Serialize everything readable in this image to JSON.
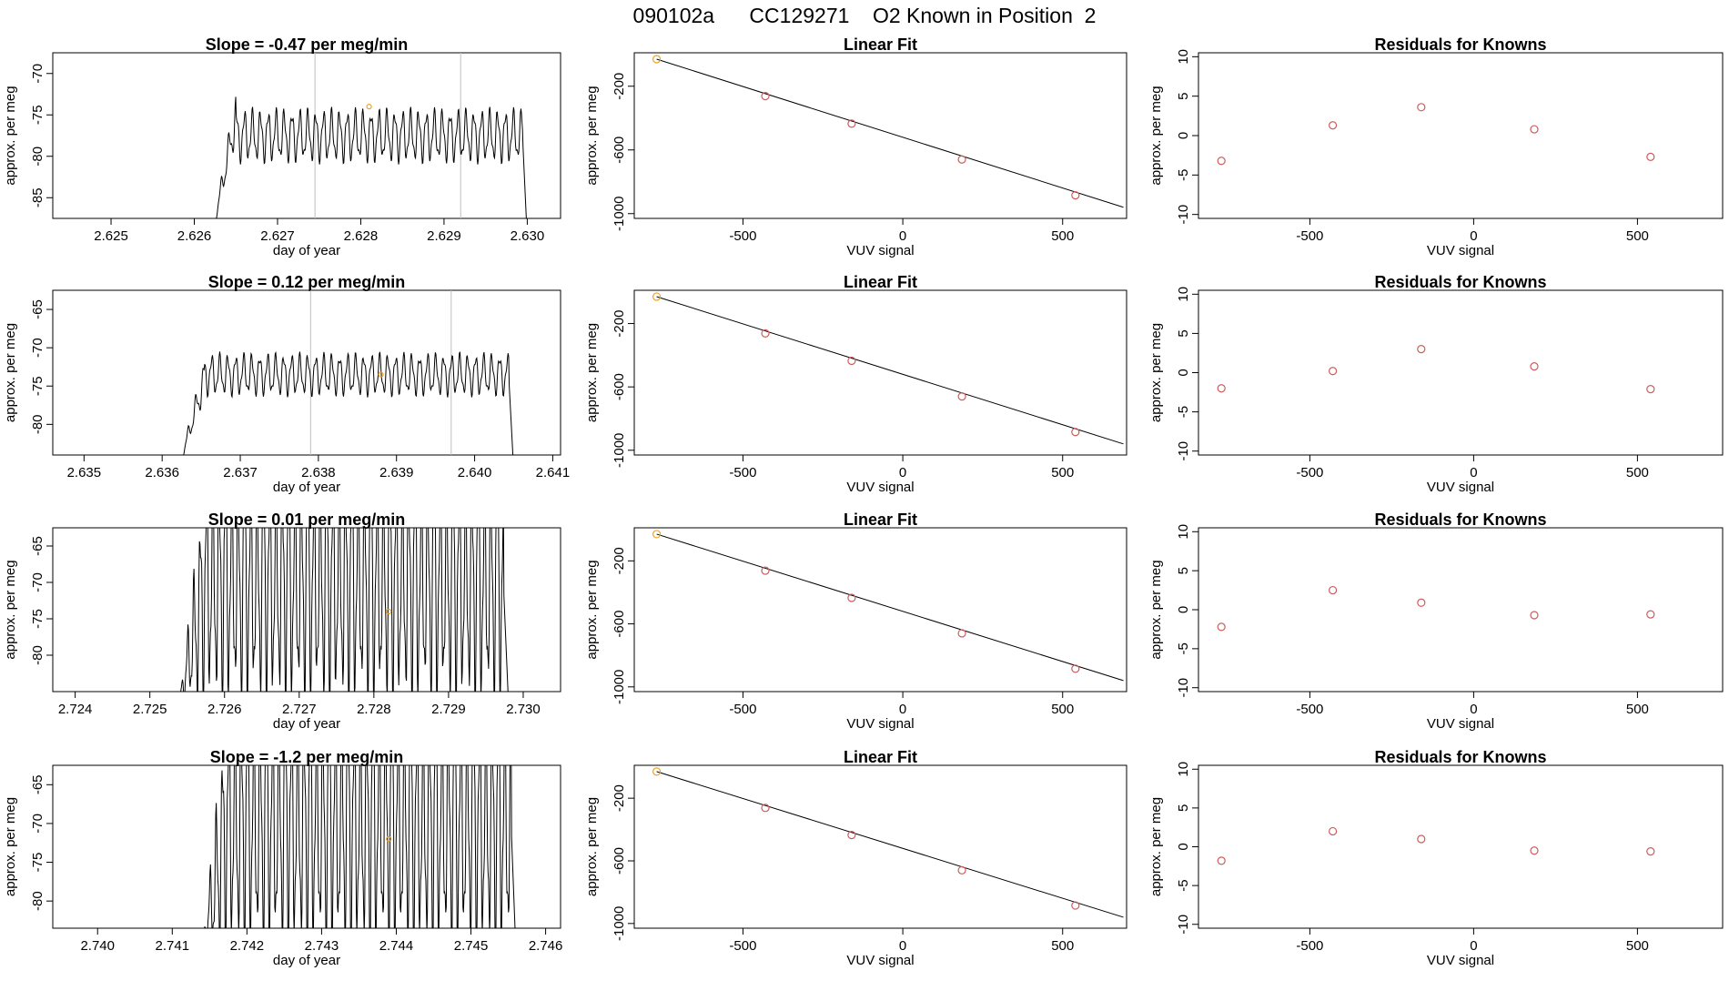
{
  "page_title": "090102a      CC129271    O2 Known in Position  2",
  "colors": {
    "axis": "#000000",
    "line": "#000000",
    "gridline": "#bfbfbf",
    "known_point": "#cd5c5c",
    "highlight_point": "#f0a020"
  },
  "chart_data": [
    {
      "type": "line",
      "row": 1,
      "panel": "timeseries",
      "title": "Slope =  -0.47  per meg/min",
      "xlabel": "day of year",
      "ylabel": "approx. per meg",
      "xlim": [
        2.6243,
        2.6304
      ],
      "ylim": [
        -87.5,
        -67.5
      ],
      "xticks": [
        2.625,
        2.626,
        2.627,
        2.628,
        2.629,
        2.63
      ],
      "xtick_labels": [
        "2.625",
        "2.626",
        "2.627",
        "2.628",
        "2.629",
        "2.630"
      ],
      "yticks": [
        -85,
        -80,
        -75,
        -70
      ],
      "ytick_labels": [
        "-85",
        "-80",
        "-75",
        "-70"
      ],
      "vlines": [
        2.62745,
        2.6292
      ],
      "series": [
        {
          "name": "per meg",
          "x_start": 2.6262,
          "x_end": 2.63,
          "level": -77.5,
          "amplitude": 3.5,
          "cycles": 40,
          "ramp_from": -90,
          "ramp_to": -75,
          "drop_to": -90
        }
      ],
      "highlight_point": {
        "x": 2.6281,
        "y": -74
      }
    },
    {
      "type": "scatter",
      "row": 1,
      "panel": "linear_fit",
      "title": "Linear Fit",
      "xlabel": "VUV signal",
      "ylabel": "approx. per meg",
      "xlim": [
        -840,
        700
      ],
      "ylim": [
        -1030,
        10
      ],
      "xticks": [
        -500,
        0,
        500
      ],
      "xtick_labels": [
        "-500",
        "0",
        "500"
      ],
      "yticks": [
        -1000,
        -600,
        -200
      ],
      "ytick_labels": [
        "-1000",
        "-600",
        "-200"
      ],
      "points": [
        {
          "x": -770,
          "y": -30
        },
        {
          "x": -430,
          "y": -262
        },
        {
          "x": -160,
          "y": -435
        },
        {
          "x": 185,
          "y": -660
        },
        {
          "x": 540,
          "y": -885
        }
      ],
      "fit_line": {
        "x": [
          -770,
          690
        ],
        "y": [
          -30,
          -960
        ]
      }
    },
    {
      "type": "scatter",
      "row": 1,
      "panel": "residuals",
      "title": "Residuals for Knowns",
      "xlabel": "VUV signal",
      "ylabel": "approx. per meg",
      "xlim": [
        -840,
        760
      ],
      "ylim": [
        -10.5,
        10.5
      ],
      "xticks": [
        -500,
        0,
        500
      ],
      "xtick_labels": [
        "-500",
        "0",
        "500"
      ],
      "yticks": [
        -10,
        -5,
        0,
        5,
        10
      ],
      "ytick_labels": [
        "-10",
        "-5",
        "0",
        "5",
        "10"
      ],
      "points": [
        {
          "x": -770,
          "y": -3.2
        },
        {
          "x": -430,
          "y": 1.3
        },
        {
          "x": -160,
          "y": 3.6
        },
        {
          "x": 185,
          "y": 0.8
        },
        {
          "x": 540,
          "y": -2.7
        }
      ]
    },
    {
      "type": "line",
      "row": 2,
      "panel": "timeseries",
      "title": "Slope =  0.12  per meg/min",
      "xlabel": "day of year",
      "ylabel": "approx. per meg",
      "xlim": [
        2.6346,
        2.6411
      ],
      "ylim": [
        -84,
        -62.5
      ],
      "xticks": [
        2.635,
        2.636,
        2.637,
        2.638,
        2.639,
        2.64,
        2.641
      ],
      "xtick_labels": [
        "2.635",
        "2.636",
        "2.637",
        "2.638",
        "2.639",
        "2.640",
        "2.641"
      ],
      "yticks": [
        -80,
        -75,
        -70,
        -65
      ],
      "ytick_labels": [
        "-80",
        "-75",
        "-70",
        "-65"
      ],
      "vlines": [
        2.6379,
        2.6397
      ],
      "series": [
        {
          "name": "per meg",
          "x_start": 2.6362,
          "x_end": 2.6405,
          "level": -73.5,
          "amplitude": 3.0,
          "cycles": 42,
          "ramp_from": -86,
          "ramp_to": -74,
          "drop_to": -86
        }
      ],
      "highlight_point": {
        "x": 2.6388,
        "y": -73.5
      }
    },
    {
      "type": "scatter",
      "row": 2,
      "panel": "linear_fit",
      "title": "Linear Fit",
      "xlabel": "VUV signal",
      "ylabel": "approx. per meg",
      "xlim": [
        -840,
        700
      ],
      "ylim": [
        -1030,
        10
      ],
      "xticks": [
        -500,
        0,
        500
      ],
      "xtick_labels": [
        "-500",
        "0",
        "500"
      ],
      "yticks": [
        -1000,
        -600,
        -200
      ],
      "ytick_labels": [
        "-1000",
        "-600",
        "-200"
      ],
      "points": [
        {
          "x": -770,
          "y": -30
        },
        {
          "x": -430,
          "y": -262
        },
        {
          "x": -160,
          "y": -435
        },
        {
          "x": 185,
          "y": -660
        },
        {
          "x": 540,
          "y": -885
        }
      ],
      "fit_line": {
        "x": [
          -770,
          690
        ],
        "y": [
          -30,
          -960
        ]
      }
    },
    {
      "type": "scatter",
      "row": 2,
      "panel": "residuals",
      "title": "Residuals for Knowns",
      "xlabel": "VUV signal",
      "ylabel": "approx. per meg",
      "xlim": [
        -840,
        760
      ],
      "ylim": [
        -10.5,
        10.5
      ],
      "xticks": [
        -500,
        0,
        500
      ],
      "xtick_labels": [
        "-500",
        "0",
        "500"
      ],
      "yticks": [
        -10,
        -5,
        0,
        5,
        10
      ],
      "ytick_labels": [
        "-10",
        "-5",
        "0",
        "5",
        "10"
      ],
      "points": [
        {
          "x": -770,
          "y": -2.0
        },
        {
          "x": -430,
          "y": 0.2
        },
        {
          "x": -160,
          "y": 3.0
        },
        {
          "x": 185,
          "y": 0.8
        },
        {
          "x": 540,
          "y": -2.1
        }
      ]
    },
    {
      "type": "line",
      "row": 3,
      "panel": "timeseries",
      "title": "Slope =  0.01  per meg/min",
      "xlabel": "day of year",
      "ylabel": "approx. per meg",
      "xlim": [
        2.7237,
        2.7305
      ],
      "ylim": [
        -85,
        -62.5
      ],
      "xticks": [
        2.724,
        2.725,
        2.726,
        2.727,
        2.728,
        2.729,
        2.73
      ],
      "xtick_labels": [
        "2.724",
        "2.725",
        "2.726",
        "2.727",
        "2.728",
        "2.729",
        "2.730"
      ],
      "yticks": [
        -80,
        -75,
        -70,
        -65
      ],
      "ytick_labels": [
        "-80",
        "-75",
        "-70",
        "-65"
      ],
      "vlines": [],
      "series": [
        {
          "name": "per meg",
          "x_start": 2.7254,
          "x_end": 2.7298,
          "level": -70,
          "amplitude": 18,
          "cycles": 52,
          "ramp_from": -86,
          "ramp_to": -70,
          "drop_to": -86
        }
      ],
      "highlight_point": {
        "x": 2.7282,
        "y": -74
      }
    },
    {
      "type": "scatter",
      "row": 3,
      "panel": "linear_fit",
      "title": "Linear Fit",
      "xlabel": "VUV signal",
      "ylabel": "approx. per meg",
      "xlim": [
        -840,
        700
      ],
      "ylim": [
        -1030,
        10
      ],
      "xticks": [
        -500,
        0,
        500
      ],
      "xtick_labels": [
        "-500",
        "0",
        "500"
      ],
      "yticks": [
        -1000,
        -600,
        -200
      ],
      "ytick_labels": [
        "-1000",
        "-600",
        "-200"
      ],
      "points": [
        {
          "x": -770,
          "y": -30
        },
        {
          "x": -430,
          "y": -262
        },
        {
          "x": -160,
          "y": -435
        },
        {
          "x": 185,
          "y": -660
        },
        {
          "x": 540,
          "y": -885
        }
      ],
      "fit_line": {
        "x": [
          -770,
          690
        ],
        "y": [
          -30,
          -960
        ]
      }
    },
    {
      "type": "scatter",
      "row": 3,
      "panel": "residuals",
      "title": "Residuals for Knowns",
      "xlabel": "VUV signal",
      "ylabel": "approx. per meg",
      "xlim": [
        -840,
        760
      ],
      "ylim": [
        -10.5,
        10.5
      ],
      "xticks": [
        -500,
        0,
        500
      ],
      "xtick_labels": [
        "-500",
        "0",
        "500"
      ],
      "yticks": [
        -10,
        -5,
        0,
        5,
        10
      ],
      "ytick_labels": [
        "-10",
        "-5",
        "0",
        "5",
        "10"
      ],
      "points": [
        {
          "x": -770,
          "y": -2.2
        },
        {
          "x": -430,
          "y": 2.5
        },
        {
          "x": -160,
          "y": 0.9
        },
        {
          "x": 185,
          "y": -0.7
        },
        {
          "x": 540,
          "y": -0.6
        }
      ]
    },
    {
      "type": "line",
      "row": 4,
      "panel": "timeseries",
      "title": "Slope =  -1.2  per meg/min",
      "xlabel": "day of year",
      "ylabel": "approx. per meg",
      "xlim": [
        2.7394,
        2.7462
      ],
      "ylim": [
        -83.5,
        -62.5
      ],
      "xticks": [
        2.74,
        2.741,
        2.742,
        2.743,
        2.744,
        2.745,
        2.746
      ],
      "xtick_labels": [
        "2.740",
        "2.741",
        "2.742",
        "2.743",
        "2.744",
        "2.745",
        "2.746"
      ],
      "yticks": [
        -80,
        -75,
        -70,
        -65
      ],
      "ytick_labels": [
        "-80",
        "-75",
        "-70",
        "-65"
      ],
      "vlines": [],
      "series": [
        {
          "name": "per meg",
          "x_start": 2.7414,
          "x_end": 2.7456,
          "level": -70,
          "amplitude": 18,
          "cycles": 50,
          "ramp_from": -86,
          "ramp_to": -70,
          "drop_to": -86
        }
      ],
      "highlight_point": {
        "x": 2.7439,
        "y": -72
      }
    },
    {
      "type": "scatter",
      "row": 4,
      "panel": "linear_fit",
      "title": "Linear Fit",
      "xlabel": "VUV signal",
      "ylabel": "approx. per meg",
      "xlim": [
        -840,
        700
      ],
      "ylim": [
        -1030,
        10
      ],
      "xticks": [
        -500,
        0,
        500
      ],
      "xtick_labels": [
        "-500",
        "0",
        "500"
      ],
      "yticks": [
        -1000,
        -600,
        -200
      ],
      "ytick_labels": [
        "-1000",
        "-600",
        "-200"
      ],
      "points": [
        {
          "x": -770,
          "y": -30
        },
        {
          "x": -430,
          "y": -262
        },
        {
          "x": -160,
          "y": -435
        },
        {
          "x": 185,
          "y": -660
        },
        {
          "x": 540,
          "y": -885
        }
      ],
      "fit_line": {
        "x": [
          -770,
          690
        ],
        "y": [
          -30,
          -960
        ]
      }
    },
    {
      "type": "scatter",
      "row": 4,
      "panel": "residuals",
      "title": "Residuals for Knowns",
      "xlabel": "VUV signal",
      "ylabel": "approx. per meg",
      "xlim": [
        -840,
        760
      ],
      "ylim": [
        -10.5,
        10.5
      ],
      "xticks": [
        -500,
        0,
        500
      ],
      "xtick_labels": [
        "-500",
        "0",
        "500"
      ],
      "yticks": [
        -10,
        -5,
        0,
        5,
        10
      ],
      "ytick_labels": [
        "-10",
        "-5",
        "0",
        "5",
        "10"
      ],
      "points": [
        {
          "x": -770,
          "y": -1.8
        },
        {
          "x": -430,
          "y": 2.0
        },
        {
          "x": -160,
          "y": 1.0
        },
        {
          "x": 185,
          "y": -0.5
        },
        {
          "x": 540,
          "y": -0.6
        }
      ]
    }
  ]
}
